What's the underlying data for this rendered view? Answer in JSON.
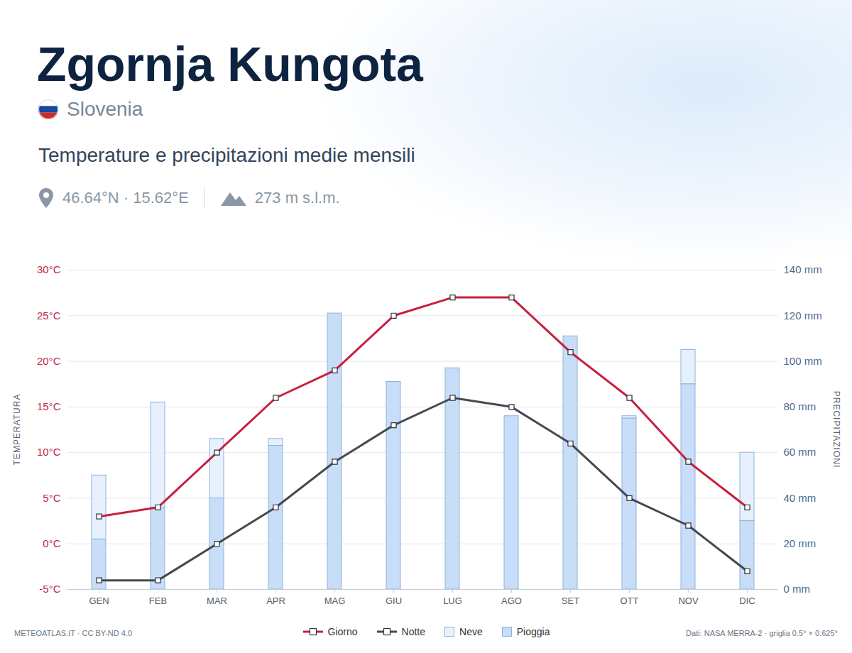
{
  "chart_data": {
    "type": "bar",
    "title": "Zgornja Kungota",
    "country": "Slovenia",
    "subtitle": "Temperature e precipitazioni medie mensili",
    "coordinates": "46.64°N · 15.62°E",
    "elevation": "273 m s.l.m.",
    "credit": "METEOATLAS.IT · CC BY-ND 4.0",
    "source": "Dati: NASA MERRA-2 · griglia 0.5° × 0.625°",
    "ylabel": "TEMPERATURA",
    "y2label": "PRECIPITAZIONI",
    "categories": [
      "GEN",
      "FEB",
      "MAR",
      "APR",
      "MAG",
      "GIU",
      "LUG",
      "AGO",
      "SET",
      "OTT",
      "NOV",
      "DIC"
    ],
    "series": [
      {
        "name": "Giorno",
        "type": "line",
        "color": "#c8203f",
        "marker": "square",
        "values": [
          3,
          4,
          10,
          16,
          19,
          25,
          27,
          27,
          21,
          16,
          9,
          4
        ]
      },
      {
        "name": "Notte",
        "type": "line",
        "color": "#464a50",
        "marker": "square",
        "values": [
          -4,
          -4,
          0,
          4,
          9,
          13,
          16,
          15,
          11,
          5,
          2,
          -3
        ]
      },
      {
        "name": "Neve",
        "type": "bar",
        "axis": "y2",
        "color": "#e6f1fd",
        "values": [
          28,
          46,
          26,
          3,
          0,
          0,
          0,
          0,
          0,
          1,
          15,
          30
        ]
      },
      {
        "name": "Pioggia",
        "type": "bar",
        "axis": "y2",
        "color": "#c7ddf8",
        "values": [
          22,
          36,
          40,
          63,
          121,
          91,
          97,
          76,
          111,
          75,
          90,
          30
        ]
      }
    ],
    "stacked": true,
    "ylim": [
      -5,
      30
    ],
    "yticks": [
      {
        "value": -5,
        "label": "-5°C"
      },
      {
        "value": 0,
        "label": "0°C"
      },
      {
        "value": 5,
        "label": "5°C"
      },
      {
        "value": 10,
        "label": "10°C"
      },
      {
        "value": 15,
        "label": "15°C"
      },
      {
        "value": 20,
        "label": "20°C"
      },
      {
        "value": 25,
        "label": "25°C"
      },
      {
        "value": 30,
        "label": "30°C"
      }
    ],
    "y2lim": [
      0,
      140
    ],
    "y2ticks": [
      {
        "value": 0,
        "label": "0 mm"
      },
      {
        "value": 20,
        "label": "20 mm"
      },
      {
        "value": 40,
        "label": "40 mm"
      },
      {
        "value": 60,
        "label": "60 mm"
      },
      {
        "value": 80,
        "label": "80 mm"
      },
      {
        "value": 100,
        "label": "100 mm"
      },
      {
        "value": 120,
        "label": "120 mm"
      },
      {
        "value": 140,
        "label": "140 mm"
      }
    ],
    "grid": true,
    "legend": "bottom"
  }
}
